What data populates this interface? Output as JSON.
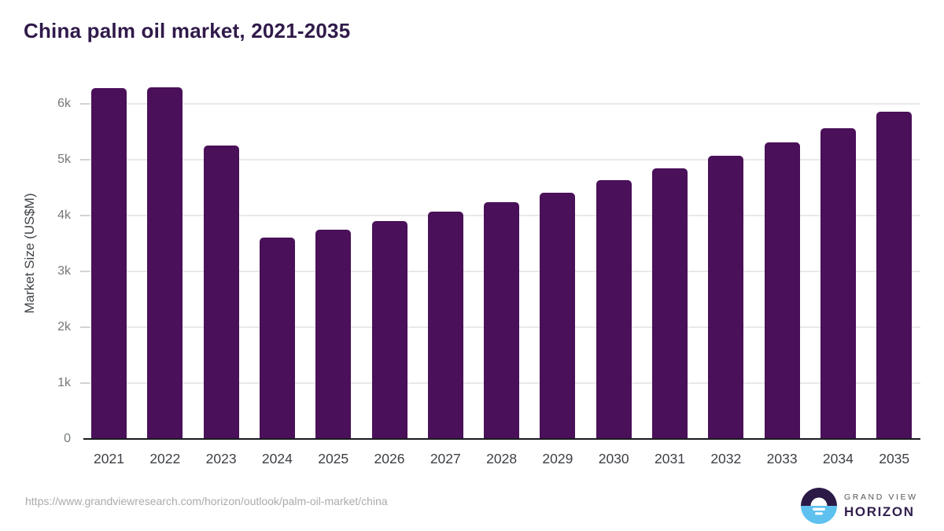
{
  "chart_data": {
    "type": "bar",
    "title": "China palm oil market, 2021-2035",
    "categories": [
      "2021",
      "2022",
      "2023",
      "2024",
      "2025",
      "2026",
      "2027",
      "2028",
      "2029",
      "2030",
      "2031",
      "2032",
      "2033",
      "2034",
      "2035"
    ],
    "values": [
      6285,
      6305,
      5265,
      3615,
      3750,
      3905,
      4070,
      4240,
      4420,
      4635,
      4850,
      5080,
      5310,
      5575,
      5860
    ],
    "xlabel": "",
    "ylabel": "Market Size (US$M)",
    "ylim": [
      0,
      6500
    ],
    "y_tick_values": [
      0,
      1000,
      2000,
      3000,
      4000,
      5000,
      6000
    ],
    "y_tick_labels": [
      "0",
      "1k",
      "2k",
      "3k",
      "4k",
      "5k",
      "6k"
    ],
    "grid": "horizontal",
    "legend": false,
    "bar_color": "#4a1059"
  },
  "footer": {
    "source_url": "https://www.grandviewresearch.com/horizon/outlook/palm-oil-market/china",
    "logo": {
      "brand_top": "GRAND VIEW",
      "brand_bottom": "HORIZON"
    }
  },
  "colors": {
    "bar": "#4a1059",
    "title": "#301a4a",
    "axis_line": "#1a1a1f",
    "gridline": "#e9e9e9",
    "x_label": "#3d4045",
    "y_label": "#75787a",
    "url": "#a9abad",
    "logo_dark": "#2b1a45",
    "logo_blue": "#5ec1ef"
  }
}
